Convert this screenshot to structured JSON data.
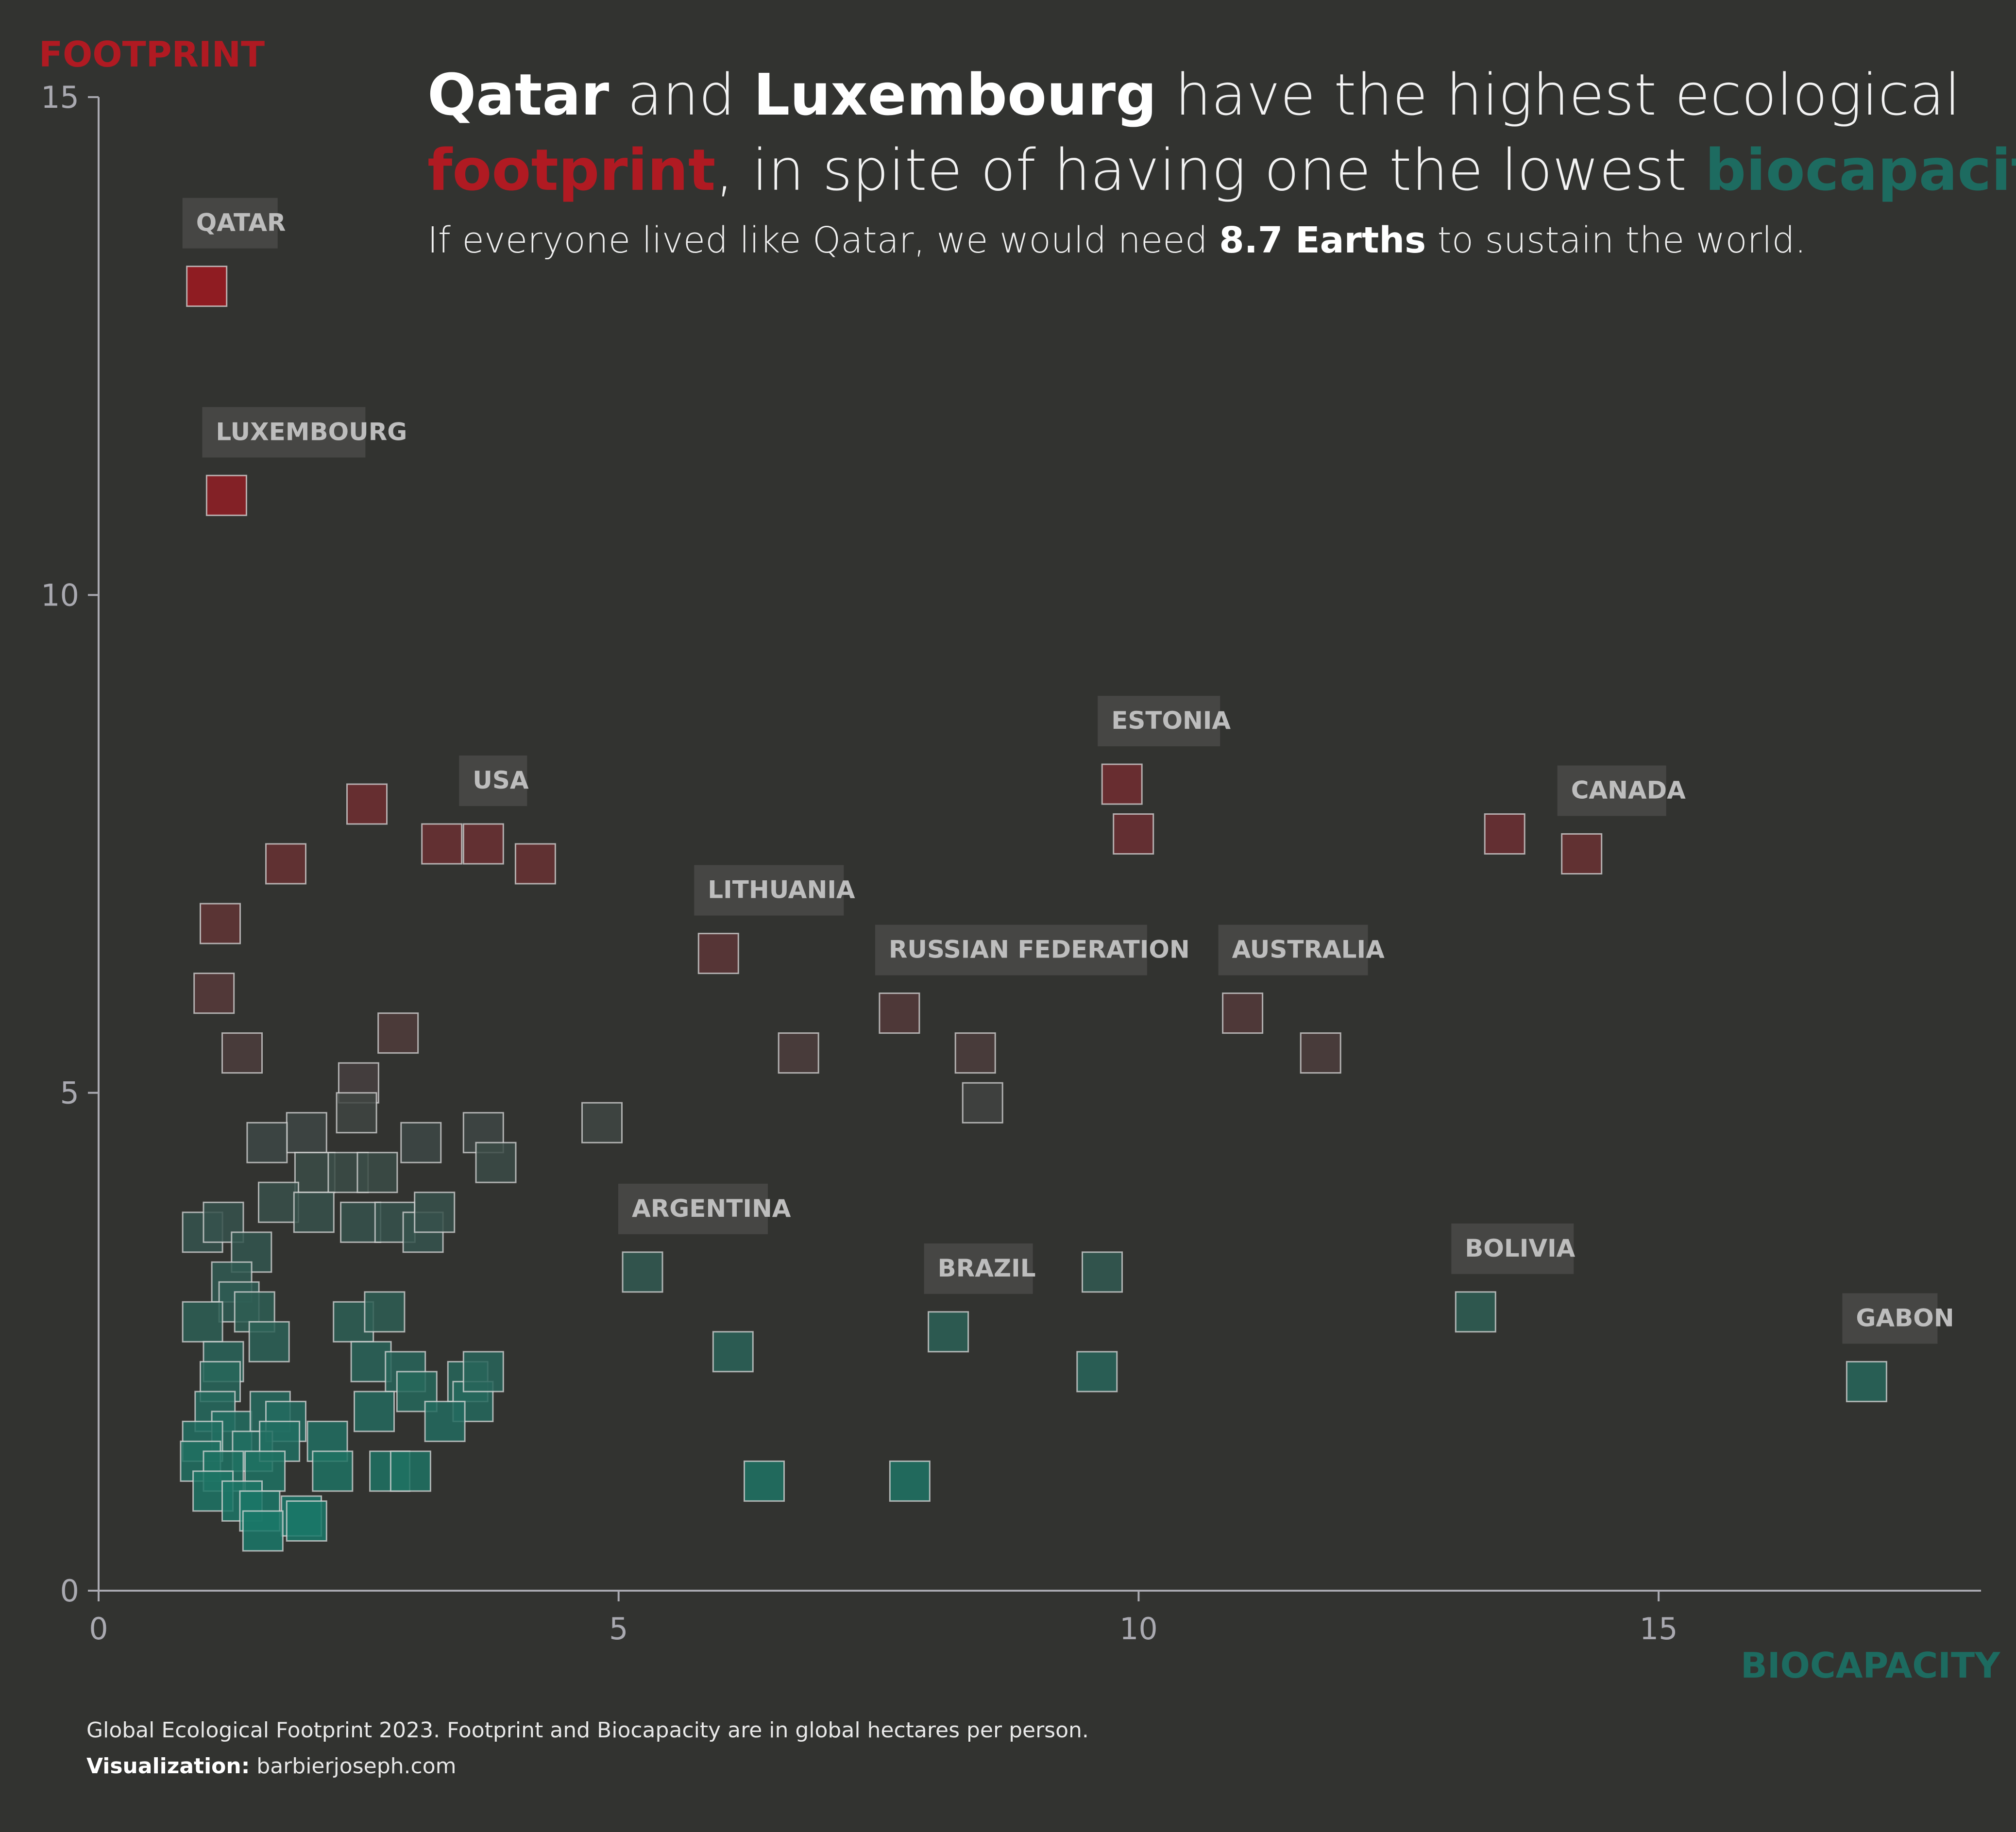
{
  "title": {
    "part1_bold": "Qatar",
    "part2": " and ",
    "part3_bold": "Luxembourg",
    "part4": " have the highest ecological",
    "part5_red": "footprint",
    "part6": ", in spite of having one the lowest ",
    "part7_green": "biocapacity"
  },
  "subtitle": {
    "part1": "If everyone lived like Qatar, we would need ",
    "part2_bold": "8.7 Earths",
    "part3": " to sustain the world."
  },
  "axes": {
    "y_title": "FOOTPRINT",
    "x_title": "BIOCAPACITY"
  },
  "caption": {
    "line1": "Global Ecological Footprint 2023. Footprint and Biocapacity are in global hectares per person.",
    "line2_bold": "Visualization:",
    "line2": " barbierjoseph.com"
  },
  "colors": {
    "background": "#323330",
    "footprint_red": "#b01a22",
    "biocapacity_green": "#1d6b60",
    "axis": "#a9a9b0",
    "label_box": "#464644",
    "label_text": "#bdbdbd"
  },
  "chart_data": {
    "type": "scatter",
    "xlabel": "BIOCAPACITY",
    "ylabel": "FOOTPRINT",
    "xlim": [
      0,
      18.1
    ],
    "ylim": [
      0,
      15
    ],
    "x_ticks": [
      0,
      5,
      10,
      15
    ],
    "y_ticks": [
      0,
      5,
      10,
      15
    ],
    "grid": false,
    "color_encoding": "red = high footprint, green = low footprint",
    "labeled_points": [
      {
        "name": "QATAR",
        "x": 1.04,
        "y": 13.1
      },
      {
        "name": "LUXEMBOURG",
        "x": 1.23,
        "y": 11.0
      },
      {
        "name": "USA",
        "x": 3.7,
        "y": 7.5
      },
      {
        "name": "LITHUANIA",
        "x": 5.96,
        "y": 6.4
      },
      {
        "name": "ESTONIA",
        "x": 9.84,
        "y": 8.1
      },
      {
        "name": "CANADA",
        "x": 14.26,
        "y": 7.4
      },
      {
        "name": "RUSSIAN FEDERATION",
        "x": 7.7,
        "y": 5.8
      },
      {
        "name": "AUSTRALIA",
        "x": 11.0,
        "y": 5.8
      },
      {
        "name": "ARGENTINA",
        "x": 5.23,
        "y": 3.2
      },
      {
        "name": "BRAZIL",
        "x": 8.17,
        "y": 2.6
      },
      {
        "name": "BOLIVIA",
        "x": 13.24,
        "y": 2.8
      },
      {
        "name": "GABON",
        "x": 17.0,
        "y": 2.1
      }
    ],
    "points": [
      {
        "x": 1.04,
        "y": 13.1
      },
      {
        "x": 1.23,
        "y": 11.0
      },
      {
        "x": 2.58,
        "y": 7.9
      },
      {
        "x": 1.8,
        "y": 7.3
      },
      {
        "x": 3.3,
        "y": 7.5
      },
      {
        "x": 3.7,
        "y": 7.5
      },
      {
        "x": 4.2,
        "y": 7.3
      },
      {
        "x": 1.17,
        "y": 6.7
      },
      {
        "x": 1.11,
        "y": 6.0
      },
      {
        "x": 1.38,
        "y": 5.4
      },
      {
        "x": 2.88,
        "y": 5.6
      },
      {
        "x": 2.5,
        "y": 5.1
      },
      {
        "x": 2.48,
        "y": 4.8
      },
      {
        "x": 2.0,
        "y": 4.6
      },
      {
        "x": 1.62,
        "y": 4.5
      },
      {
        "x": 3.1,
        "y": 4.5
      },
      {
        "x": 3.7,
        "y": 4.6
      },
      {
        "x": 3.82,
        "y": 4.3
      },
      {
        "x": 2.08,
        "y": 4.2
      },
      {
        "x": 2.4,
        "y": 4.2
      },
      {
        "x": 2.68,
        "y": 4.2
      },
      {
        "x": 4.84,
        "y": 4.7
      },
      {
        "x": 5.96,
        "y": 6.4
      },
      {
        "x": 6.73,
        "y": 5.4
      },
      {
        "x": 7.7,
        "y": 5.8
      },
      {
        "x": 8.43,
        "y": 5.4
      },
      {
        "x": 8.5,
        "y": 4.9
      },
      {
        "x": 9.84,
        "y": 8.1
      },
      {
        "x": 9.95,
        "y": 7.6
      },
      {
        "x": 13.52,
        "y": 7.6
      },
      {
        "x": 14.26,
        "y": 7.4
      },
      {
        "x": 11.0,
        "y": 5.8
      },
      {
        "x": 11.75,
        "y": 5.4
      },
      {
        "x": 1.73,
        "y": 3.9
      },
      {
        "x": 2.07,
        "y": 3.8
      },
      {
        "x": 2.52,
        "y": 3.7
      },
      {
        "x": 2.85,
        "y": 3.7
      },
      {
        "x": 3.12,
        "y": 3.6
      },
      {
        "x": 3.23,
        "y": 3.8
      },
      {
        "x": 1.0,
        "y": 3.6
      },
      {
        "x": 1.2,
        "y": 3.7
      },
      {
        "x": 1.47,
        "y": 3.4
      },
      {
        "x": 1.28,
        "y": 3.1
      },
      {
        "x": 1.35,
        "y": 2.9
      },
      {
        "x": 1.0,
        "y": 2.7
      },
      {
        "x": 1.5,
        "y": 2.8
      },
      {
        "x": 1.64,
        "y": 2.5
      },
      {
        "x": 2.45,
        "y": 2.7
      },
      {
        "x": 2.75,
        "y": 2.8
      },
      {
        "x": 1.2,
        "y": 2.3
      },
      {
        "x": 1.17,
        "y": 2.1
      },
      {
        "x": 2.62,
        "y": 2.3
      },
      {
        "x": 2.95,
        "y": 2.2
      },
      {
        "x": 3.06,
        "y": 2.0
      },
      {
        "x": 3.55,
        "y": 2.1
      },
      {
        "x": 3.6,
        "y": 1.9
      },
      {
        "x": 3.7,
        "y": 2.2
      },
      {
        "x": 2.65,
        "y": 1.8
      },
      {
        "x": 3.33,
        "y": 1.7
      },
      {
        "x": 1.12,
        "y": 1.8
      },
      {
        "x": 1.28,
        "y": 1.6
      },
      {
        "x": 1.65,
        "y": 1.8
      },
      {
        "x": 1.8,
        "y": 1.7
      },
      {
        "x": 1.0,
        "y": 1.5
      },
      {
        "x": 1.48,
        "y": 1.4
      },
      {
        "x": 1.74,
        "y": 1.5
      },
      {
        "x": 2.2,
        "y": 1.5
      },
      {
        "x": 0.98,
        "y": 1.3
      },
      {
        "x": 1.2,
        "y": 1.2
      },
      {
        "x": 1.6,
        "y": 1.2
      },
      {
        "x": 2.25,
        "y": 1.2
      },
      {
        "x": 2.8,
        "y": 1.2
      },
      {
        "x": 3.0,
        "y": 1.2
      },
      {
        "x": 1.1,
        "y": 1.0
      },
      {
        "x": 1.38,
        "y": 0.9
      },
      {
        "x": 1.55,
        "y": 0.8
      },
      {
        "x": 1.95,
        "y": 0.75
      },
      {
        "x": 2.0,
        "y": 0.7
      },
      {
        "x": 1.58,
        "y": 0.6
      },
      {
        "x": 5.23,
        "y": 3.2
      },
      {
        "x": 6.1,
        "y": 2.4
      },
      {
        "x": 6.4,
        "y": 1.1
      },
      {
        "x": 7.8,
        "y": 1.1
      },
      {
        "x": 8.17,
        "y": 2.6
      },
      {
        "x": 9.6,
        "y": 2.2
      },
      {
        "x": 9.65,
        "y": 3.2
      },
      {
        "x": 13.24,
        "y": 2.8
      },
      {
        "x": 17.0,
        "y": 2.1
      }
    ]
  }
}
